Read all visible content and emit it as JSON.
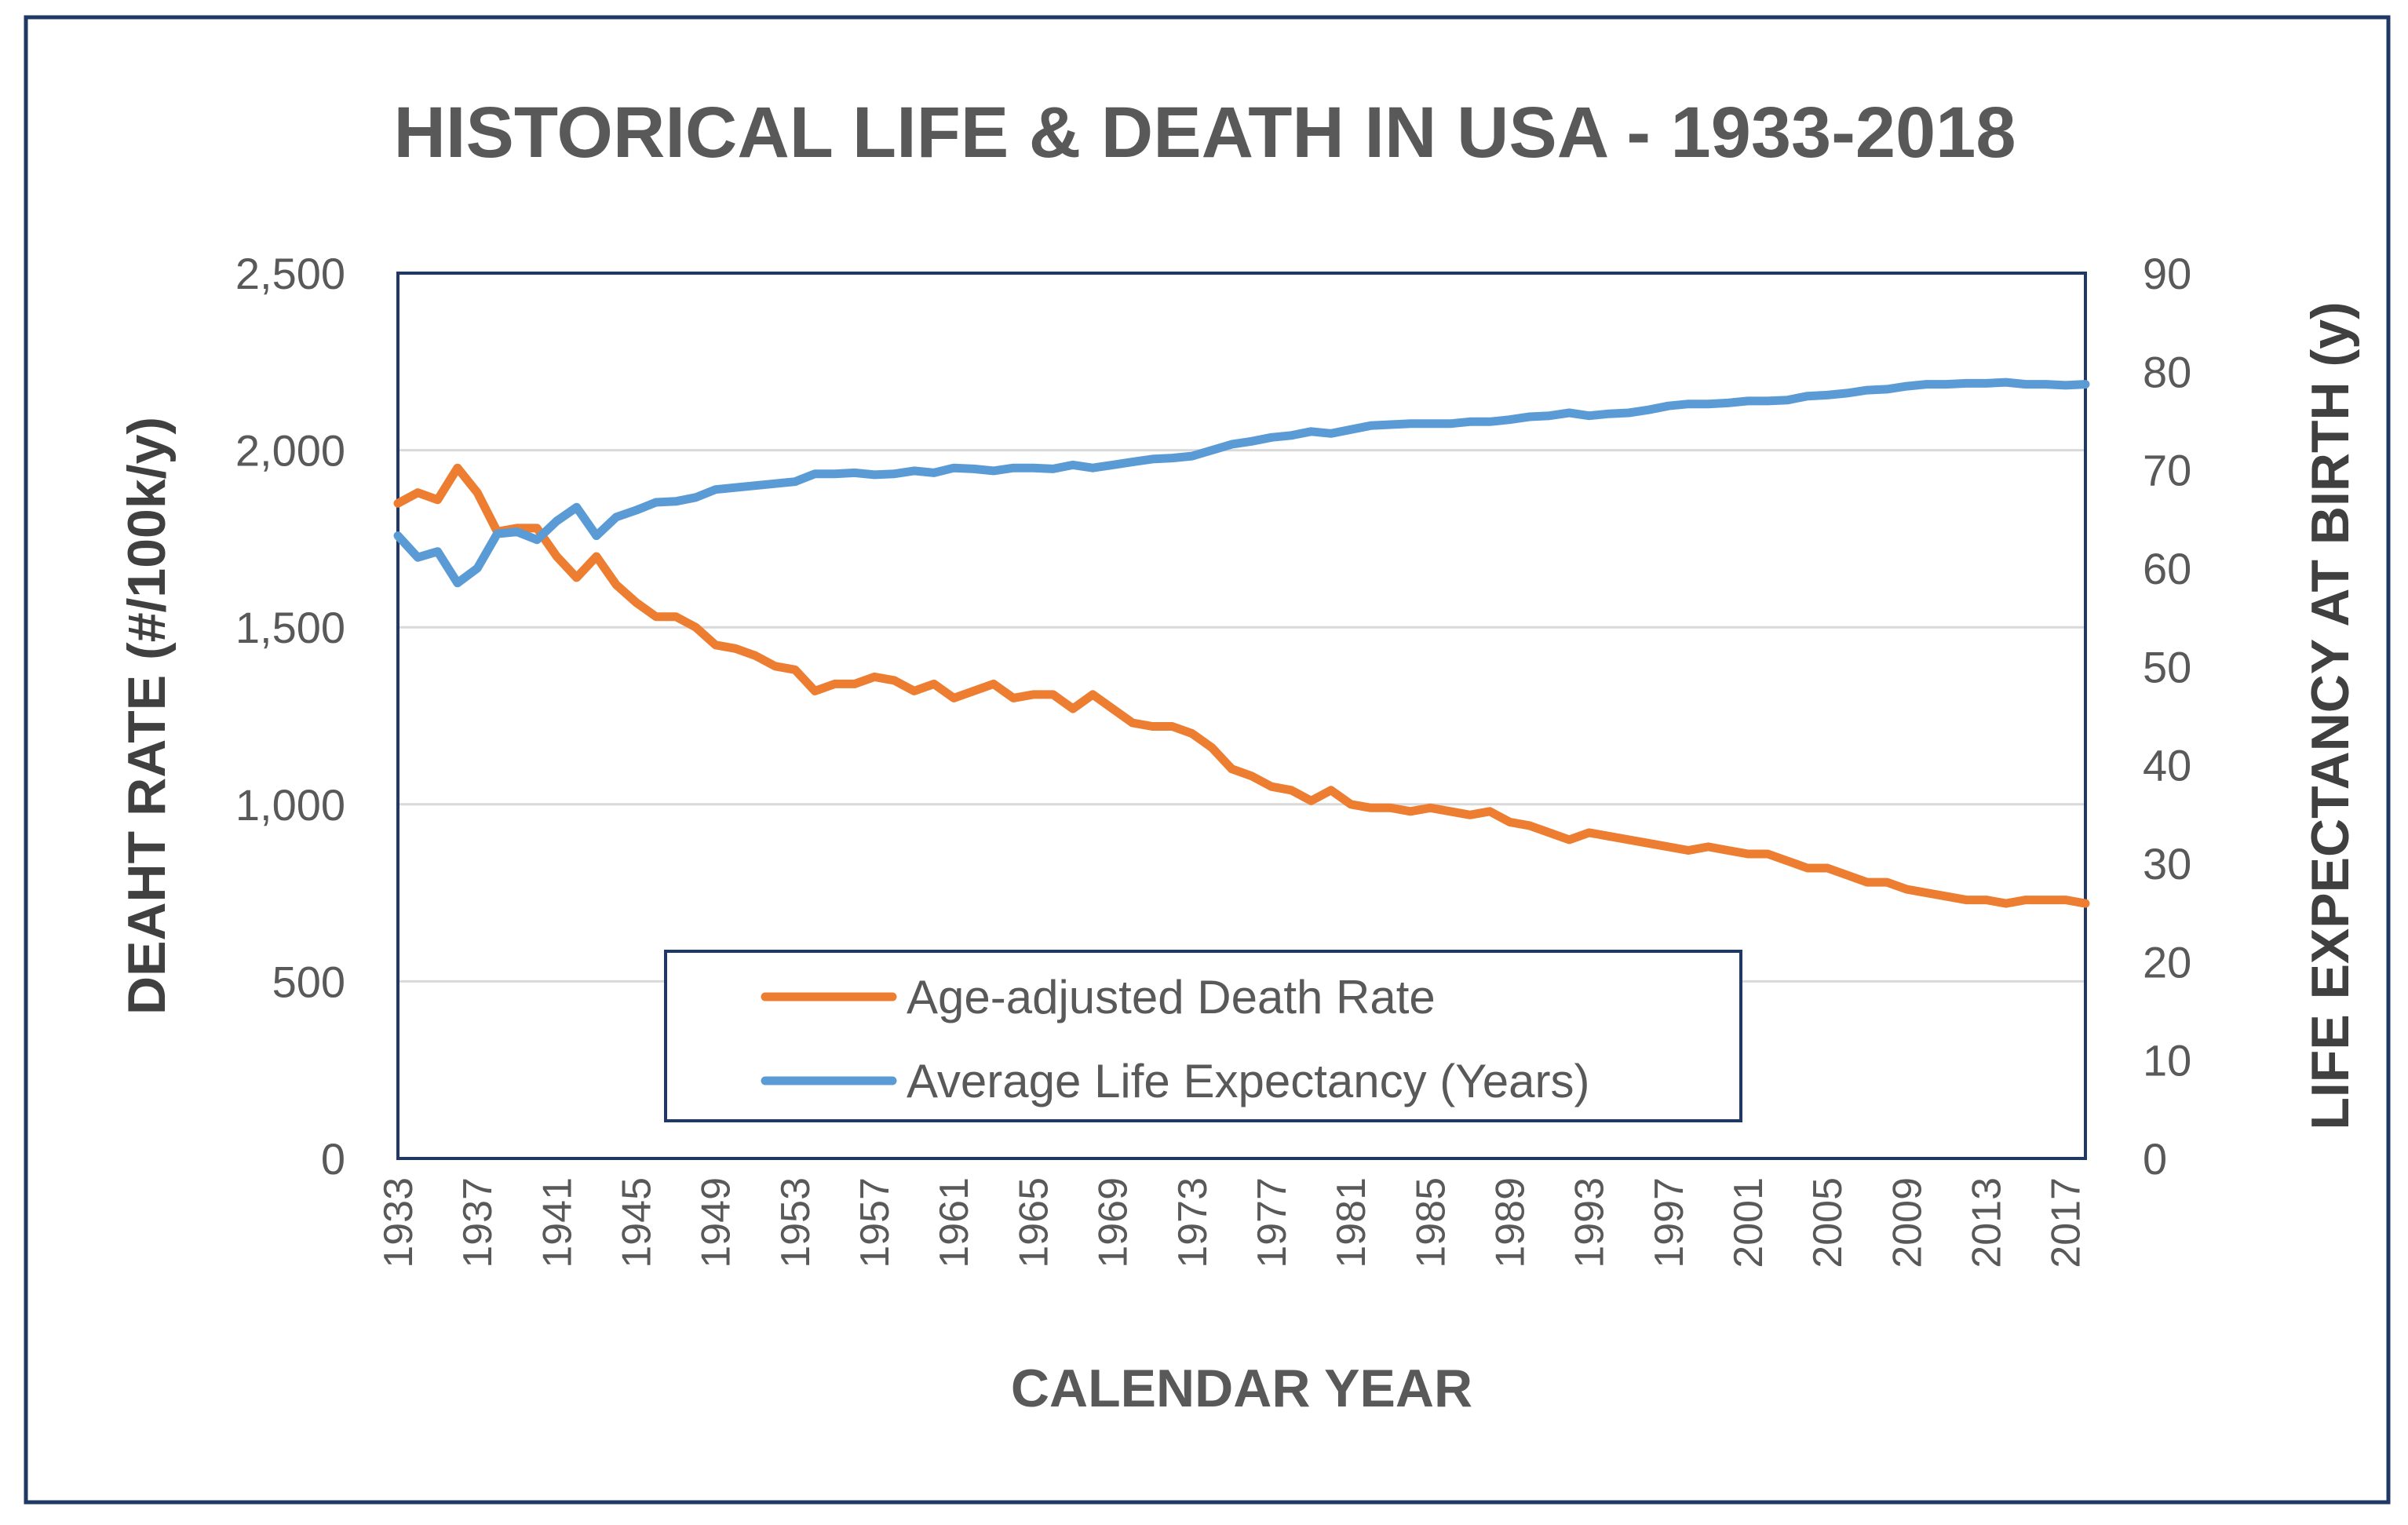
{
  "chart_data": {
    "type": "line",
    "title": "HISTORICAL LIFE & DEATH IN USA - 1933-2018",
    "xlabel": "CALENDAR YEAR",
    "ylabel": "DEAHT RATE (#/100k/y)",
    "y2label": "LIFE EXPECTANCY AT BIRTH (y)",
    "ylim": [
      0,
      2500
    ],
    "y2lim": [
      0,
      90
    ],
    "yticks": [
      "0",
      "500",
      "1,000",
      "1,500",
      "2,000",
      "2,500"
    ],
    "y2ticks": [
      "0",
      "10",
      "20",
      "30",
      "40",
      "50",
      "60",
      "70",
      "80",
      "90"
    ],
    "xticks": [
      "1933",
      "1937",
      "1941",
      "1945",
      "1949",
      "1953",
      "1957",
      "1961",
      "1965",
      "1969",
      "1973",
      "1977",
      "1981",
      "1985",
      "1989",
      "1993",
      "1997",
      "2001",
      "2005",
      "2009",
      "2013",
      "2017"
    ],
    "grid": true,
    "legend": "bottom-center",
    "x": [
      1933,
      1934,
      1935,
      1936,
      1937,
      1938,
      1939,
      1940,
      1941,
      1942,
      1943,
      1944,
      1945,
      1946,
      1947,
      1948,
      1949,
      1950,
      1951,
      1952,
      1953,
      1954,
      1955,
      1956,
      1957,
      1958,
      1959,
      1960,
      1961,
      1962,
      1963,
      1964,
      1965,
      1966,
      1967,
      1968,
      1969,
      1970,
      1971,
      1972,
      1973,
      1974,
      1975,
      1976,
      1977,
      1978,
      1979,
      1980,
      1981,
      1982,
      1983,
      1984,
      1985,
      1986,
      1987,
      1988,
      1989,
      1990,
      1991,
      1992,
      1993,
      1994,
      1995,
      1996,
      1997,
      1998,
      1999,
      2000,
      2001,
      2002,
      2003,
      2004,
      2005,
      2006,
      2007,
      2008,
      2009,
      2010,
      2011,
      2012,
      2013,
      2014,
      2015,
      2016,
      2017,
      2018
    ],
    "series": [
      {
        "name": "Age-adjusted Death Rate",
        "axis": "left",
        "color": "#ED7D31",
        "values": [
          1850,
          1880,
          1860,
          1950,
          1880,
          1770,
          1780,
          1780,
          1700,
          1640,
          1700,
          1620,
          1570,
          1530,
          1530,
          1500,
          1450,
          1440,
          1420,
          1390,
          1380,
          1320,
          1340,
          1340,
          1360,
          1350,
          1320,
          1340,
          1300,
          1320,
          1340,
          1300,
          1310,
          1310,
          1270,
          1310,
          1270,
          1230,
          1220,
          1220,
          1200,
          1160,
          1100,
          1080,
          1050,
          1040,
          1010,
          1040,
          1000,
          990,
          990,
          980,
          990,
          980,
          970,
          980,
          950,
          940,
          920,
          900,
          920,
          910,
          900,
          890,
          880,
          870,
          880,
          870,
          860,
          860,
          840,
          820,
          820,
          800,
          780,
          780,
          760,
          750,
          740,
          730,
          730,
          720,
          730,
          730,
          730,
          720
        ]
      },
      {
        "name": "Average Life Expectancy (Years)",
        "axis": "right",
        "color": "#5B9BD5",
        "values": [
          63.3,
          61.1,
          61.7,
          58.5,
          60.0,
          63.5,
          63.7,
          62.9,
          64.8,
          66.2,
          63.3,
          65.2,
          65.9,
          66.7,
          66.8,
          67.2,
          68.0,
          68.2,
          68.4,
          68.6,
          68.8,
          69.6,
          69.6,
          69.7,
          69.5,
          69.6,
          69.9,
          69.7,
          70.2,
          70.1,
          69.9,
          70.2,
          70.2,
          70.1,
          70.5,
          70.2,
          70.5,
          70.8,
          71.1,
          71.2,
          71.4,
          72.0,
          72.6,
          72.9,
          73.3,
          73.5,
          73.9,
          73.7,
          74.1,
          74.5,
          74.6,
          74.7,
          74.7,
          74.7,
          74.9,
          74.9,
          75.1,
          75.4,
          75.5,
          75.8,
          75.5,
          75.7,
          75.8,
          76.1,
          76.5,
          76.7,
          76.7,
          76.8,
          77.0,
          77.0,
          77.1,
          77.5,
          77.6,
          77.8,
          78.1,
          78.2,
          78.5,
          78.7,
          78.7,
          78.8,
          78.8,
          78.9,
          78.7,
          78.7,
          78.6,
          78.7
        ]
      }
    ]
  }
}
